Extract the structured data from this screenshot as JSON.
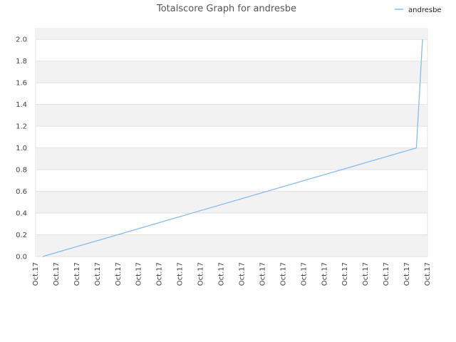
{
  "chart_data": {
    "type": "line",
    "title": "Totalscore Graph for andresbe",
    "xlabel": "",
    "ylabel": "",
    "ylim": [
      0,
      2.1
    ],
    "grid": "horizontal bands, alternating light grey",
    "legend_position": "top-right",
    "categories": [
      "Oct.17",
      "Oct.17",
      "Oct.17",
      "Oct.17",
      "Oct.17",
      "Oct.17",
      "Oct.17",
      "Oct.17",
      "Oct.17",
      "Oct.17",
      "Oct.17",
      "Oct.17",
      "Oct.17",
      "Oct.17",
      "Oct.17",
      "Oct.17",
      "Oct.17",
      "Oct.17",
      "Oct.17",
      "Oct.17"
    ],
    "y_ticks": [
      "0.0",
      "0.2",
      "0.4",
      "0.6",
      "0.8",
      "1.0",
      "1.2",
      "1.4",
      "1.6",
      "1.8",
      "2.0"
    ],
    "series": [
      {
        "name": "andresbe",
        "color": "#88bbee",
        "x": [
          0,
          18.2,
          18.5
        ],
        "values": [
          0,
          1.0,
          2.0
        ]
      }
    ]
  }
}
